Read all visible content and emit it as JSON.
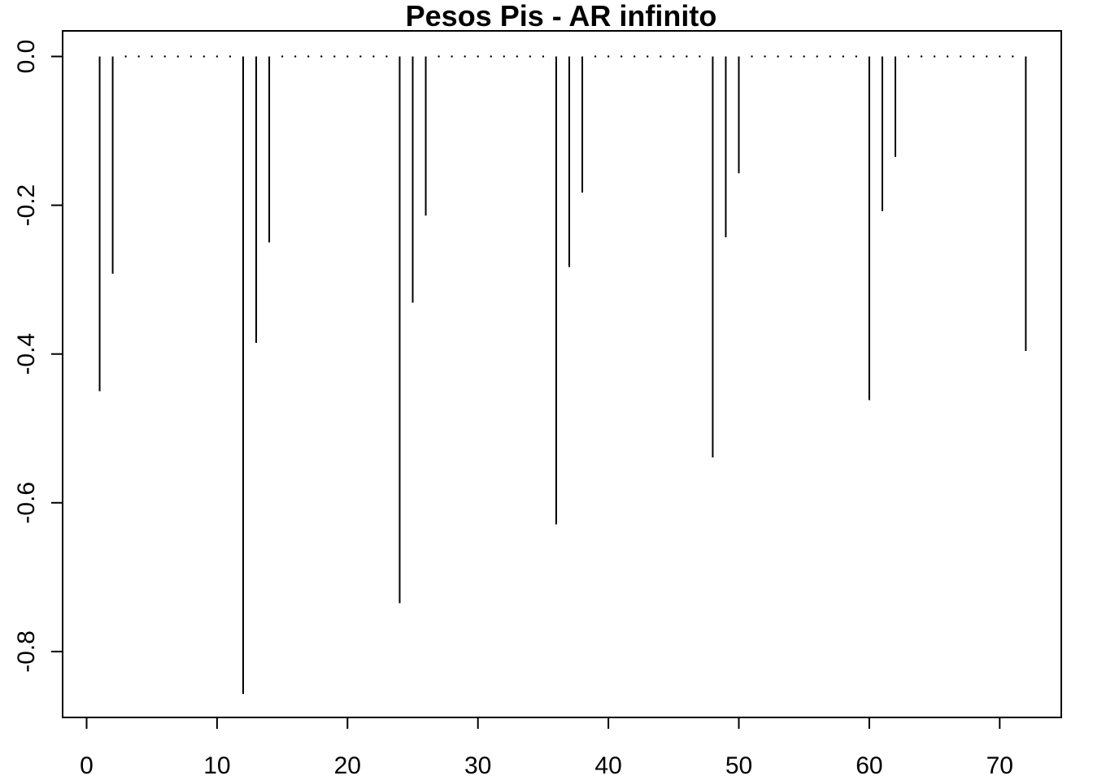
{
  "chart_data": {
    "type": "bar",
    "style": "vertical spikes (R type='h')",
    "title": "Pesos Pis - AR infinito",
    "xlabel": "",
    "ylabel": "",
    "xlim": [
      0,
      72
    ],
    "ylim": [
      -0.85,
      0.0
    ],
    "xticks": [
      0,
      10,
      20,
      30,
      40,
      50,
      60,
      70
    ],
    "yticks": [
      0.0,
      -0.2,
      -0.4,
      -0.6,
      -0.8
    ],
    "ytick_labels": [
      "0.0",
      "-0.2",
      "-0.4",
      "-0.6",
      "-0.8"
    ],
    "xtick_labels": [
      "0",
      "10",
      "20",
      "30",
      "40",
      "50",
      "60",
      "70"
    ],
    "grid": false,
    "legend": "none",
    "x": [
      1,
      2,
      3,
      4,
      5,
      6,
      7,
      8,
      9,
      10,
      11,
      12,
      13,
      14,
      15,
      16,
      17,
      18,
      19,
      20,
      21,
      22,
      23,
      24,
      25,
      26,
      27,
      28,
      29,
      30,
      31,
      32,
      33,
      34,
      35,
      36,
      37,
      38,
      39,
      40,
      41,
      42,
      43,
      44,
      45,
      46,
      47,
      48,
      49,
      50,
      51,
      52,
      53,
      54,
      55,
      56,
      57,
      58,
      59,
      60,
      61,
      62,
      63,
      64,
      65,
      66,
      67,
      68,
      69,
      70,
      71,
      72
    ],
    "values": [
      -0.45,
      -0.292,
      0,
      0,
      0,
      0,
      0,
      0,
      0,
      0,
      0,
      -0.857,
      -0.385,
      -0.25,
      0,
      0,
      0,
      0,
      0,
      0,
      0,
      0,
      0,
      -0.735,
      -0.331,
      -0.214,
      0,
      0,
      0,
      0,
      0,
      0,
      0,
      0,
      0,
      -0.629,
      -0.283,
      -0.183,
      0,
      0,
      0,
      0,
      0,
      0,
      0,
      0,
      0,
      -0.539,
      -0.243,
      -0.157,
      0,
      0,
      0,
      0,
      0,
      0,
      0,
      0,
      0,
      -0.462,
      -0.208,
      -0.135,
      0,
      0,
      0,
      0,
      0,
      0,
      0,
      0,
      0,
      -0.396
    ],
    "colors": {
      "line": "#000000",
      "background": "#ffffff"
    }
  }
}
